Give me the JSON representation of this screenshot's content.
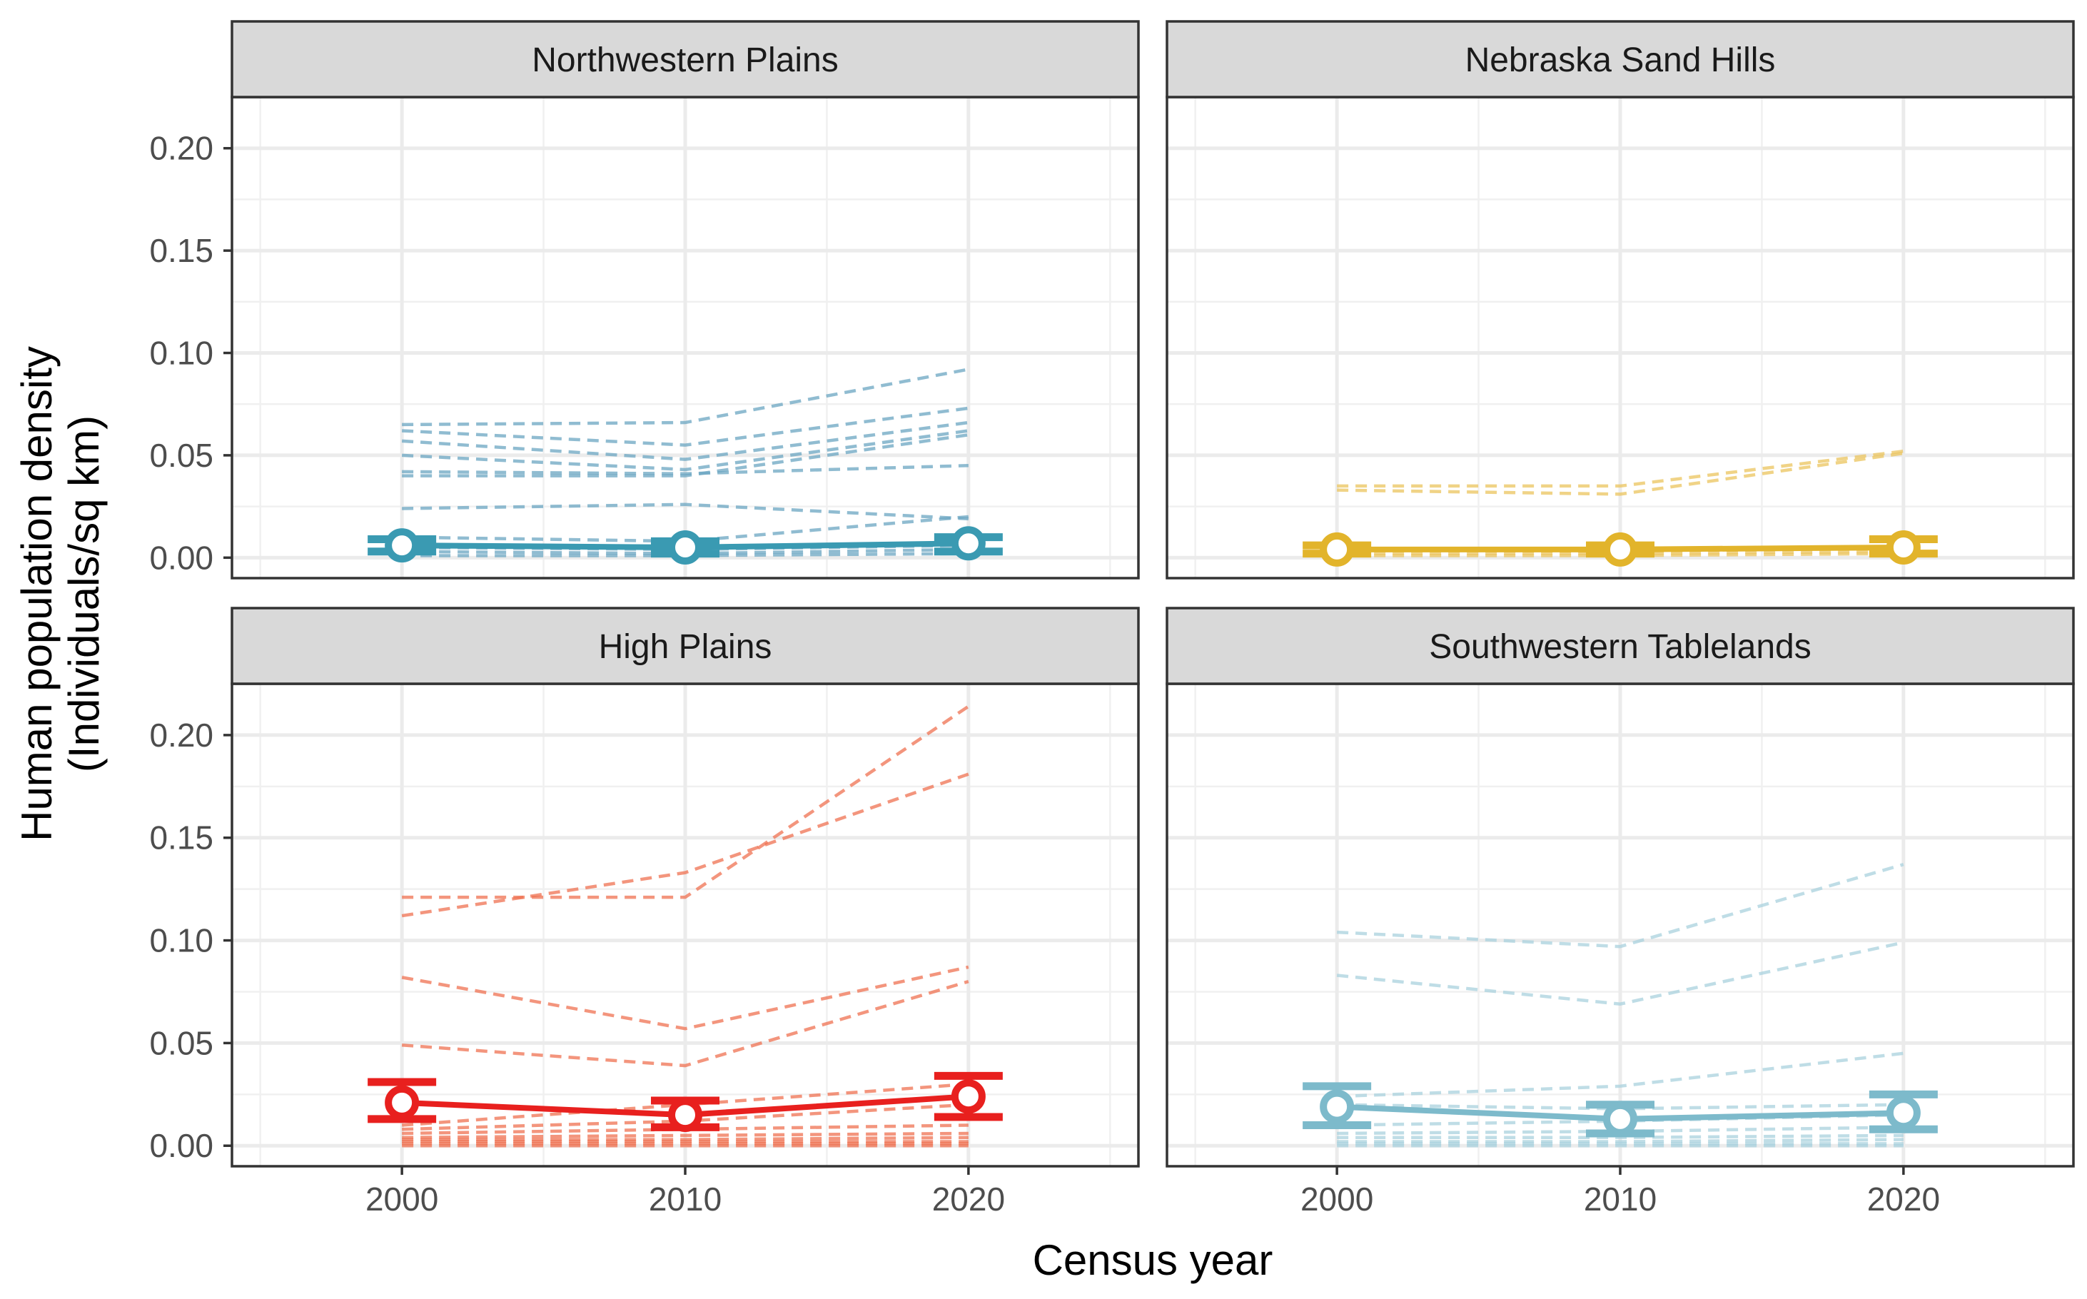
{
  "chart_data": {
    "type": "line",
    "layout": "facet-grid-2x2",
    "xlabel": "Census year",
    "ylabel": [
      "Human population density",
      "(Individuals/sq km)"
    ],
    "x": [
      2000,
      2010,
      2020
    ],
    "x_ticks": [
      "2000",
      "2010",
      "2020"
    ],
    "y_ticks": [
      "0.00",
      "0.05",
      "0.10",
      "0.15",
      "0.20"
    ],
    "xlim": [
      1994,
      2026
    ],
    "ylim": [
      -0.01,
      0.225
    ],
    "panels": [
      {
        "title": "Northwestern Plains",
        "color": "#3A9AB2",
        "line_color": "#6BA5C2",
        "mean": [
          0.006,
          0.005,
          0.007
        ],
        "err_low": [
          0.003,
          0.002,
          0.003
        ],
        "err_high": [
          0.009,
          0.008,
          0.01
        ],
        "series": [
          [
            0.065,
            0.066,
            0.092
          ],
          [
            0.062,
            0.055,
            0.073
          ],
          [
            0.057,
            0.048,
            0.066
          ],
          [
            0.05,
            0.043,
            0.062
          ],
          [
            0.042,
            0.041,
            0.045
          ],
          [
            0.04,
            0.04,
            0.06
          ],
          [
            0.024,
            0.026,
            0.019
          ],
          [
            0.01,
            0.008,
            0.02
          ],
          [
            0.005,
            0.004,
            0.006
          ],
          [
            0.003,
            0.002,
            0.004
          ],
          [
            0.001,
            0.001,
            0.002
          ]
        ]
      },
      {
        "title": "Nebraska Sand Hills",
        "color": "#E2B42B",
        "line_color": "#EBC45E",
        "mean": [
          0.004,
          0.004,
          0.005
        ],
        "err_low": [
          0.002,
          0.002,
          0.002
        ],
        "err_high": [
          0.006,
          0.006,
          0.009
        ],
        "series": [
          [
            0.035,
            0.035,
            0.052
          ],
          [
            0.033,
            0.031,
            0.051
          ],
          [
            0.004,
            0.003,
            0.005
          ],
          [
            0.002,
            0.002,
            0.003
          ],
          [
            0.001,
            0.001,
            0.002
          ]
        ]
      },
      {
        "title": "High Plains",
        "color": "#E8201E",
        "line_color": "#EF7151",
        "mean": [
          0.021,
          0.015,
          0.024
        ],
        "err_low": [
          0.013,
          0.009,
          0.014
        ],
        "err_high": [
          0.031,
          0.022,
          0.034
        ],
        "series": [
          [
            0.121,
            0.121,
            0.214
          ],
          [
            0.112,
            0.133,
            0.181
          ],
          [
            0.082,
            0.057,
            0.087
          ],
          [
            0.049,
            0.039,
            0.08
          ],
          [
            0.01,
            0.02,
            0.03
          ],
          [
            0.008,
            0.012,
            0.02
          ],
          [
            0.006,
            0.008,
            0.01
          ],
          [
            0.004,
            0.005,
            0.006
          ],
          [
            0.003,
            0.003,
            0.004
          ],
          [
            0.002,
            0.002,
            0.002
          ],
          [
            0.001,
            0.001,
            0.001
          ],
          [
            0.0,
            0.0,
            0.0
          ]
        ]
      },
      {
        "title": "Southwestern Tablelands",
        "color": "#7DBACB",
        "line_color": "#A9D1DE",
        "mean": [
          0.019,
          0.013,
          0.016
        ],
        "err_low": [
          0.01,
          0.006,
          0.008
        ],
        "err_high": [
          0.029,
          0.02,
          0.025
        ],
        "series": [
          [
            0.104,
            0.097,
            0.137
          ],
          [
            0.083,
            0.069,
            0.099
          ],
          [
            0.024,
            0.029,
            0.045
          ],
          [
            0.02,
            0.018,
            0.02
          ],
          [
            0.01,
            0.012,
            0.015
          ],
          [
            0.006,
            0.007,
            0.009
          ],
          [
            0.004,
            0.004,
            0.005
          ],
          [
            0.002,
            0.002,
            0.003
          ],
          [
            0.001,
            0.001,
            0.001
          ],
          [
            0.0,
            0.0,
            0.0
          ]
        ]
      }
    ]
  }
}
